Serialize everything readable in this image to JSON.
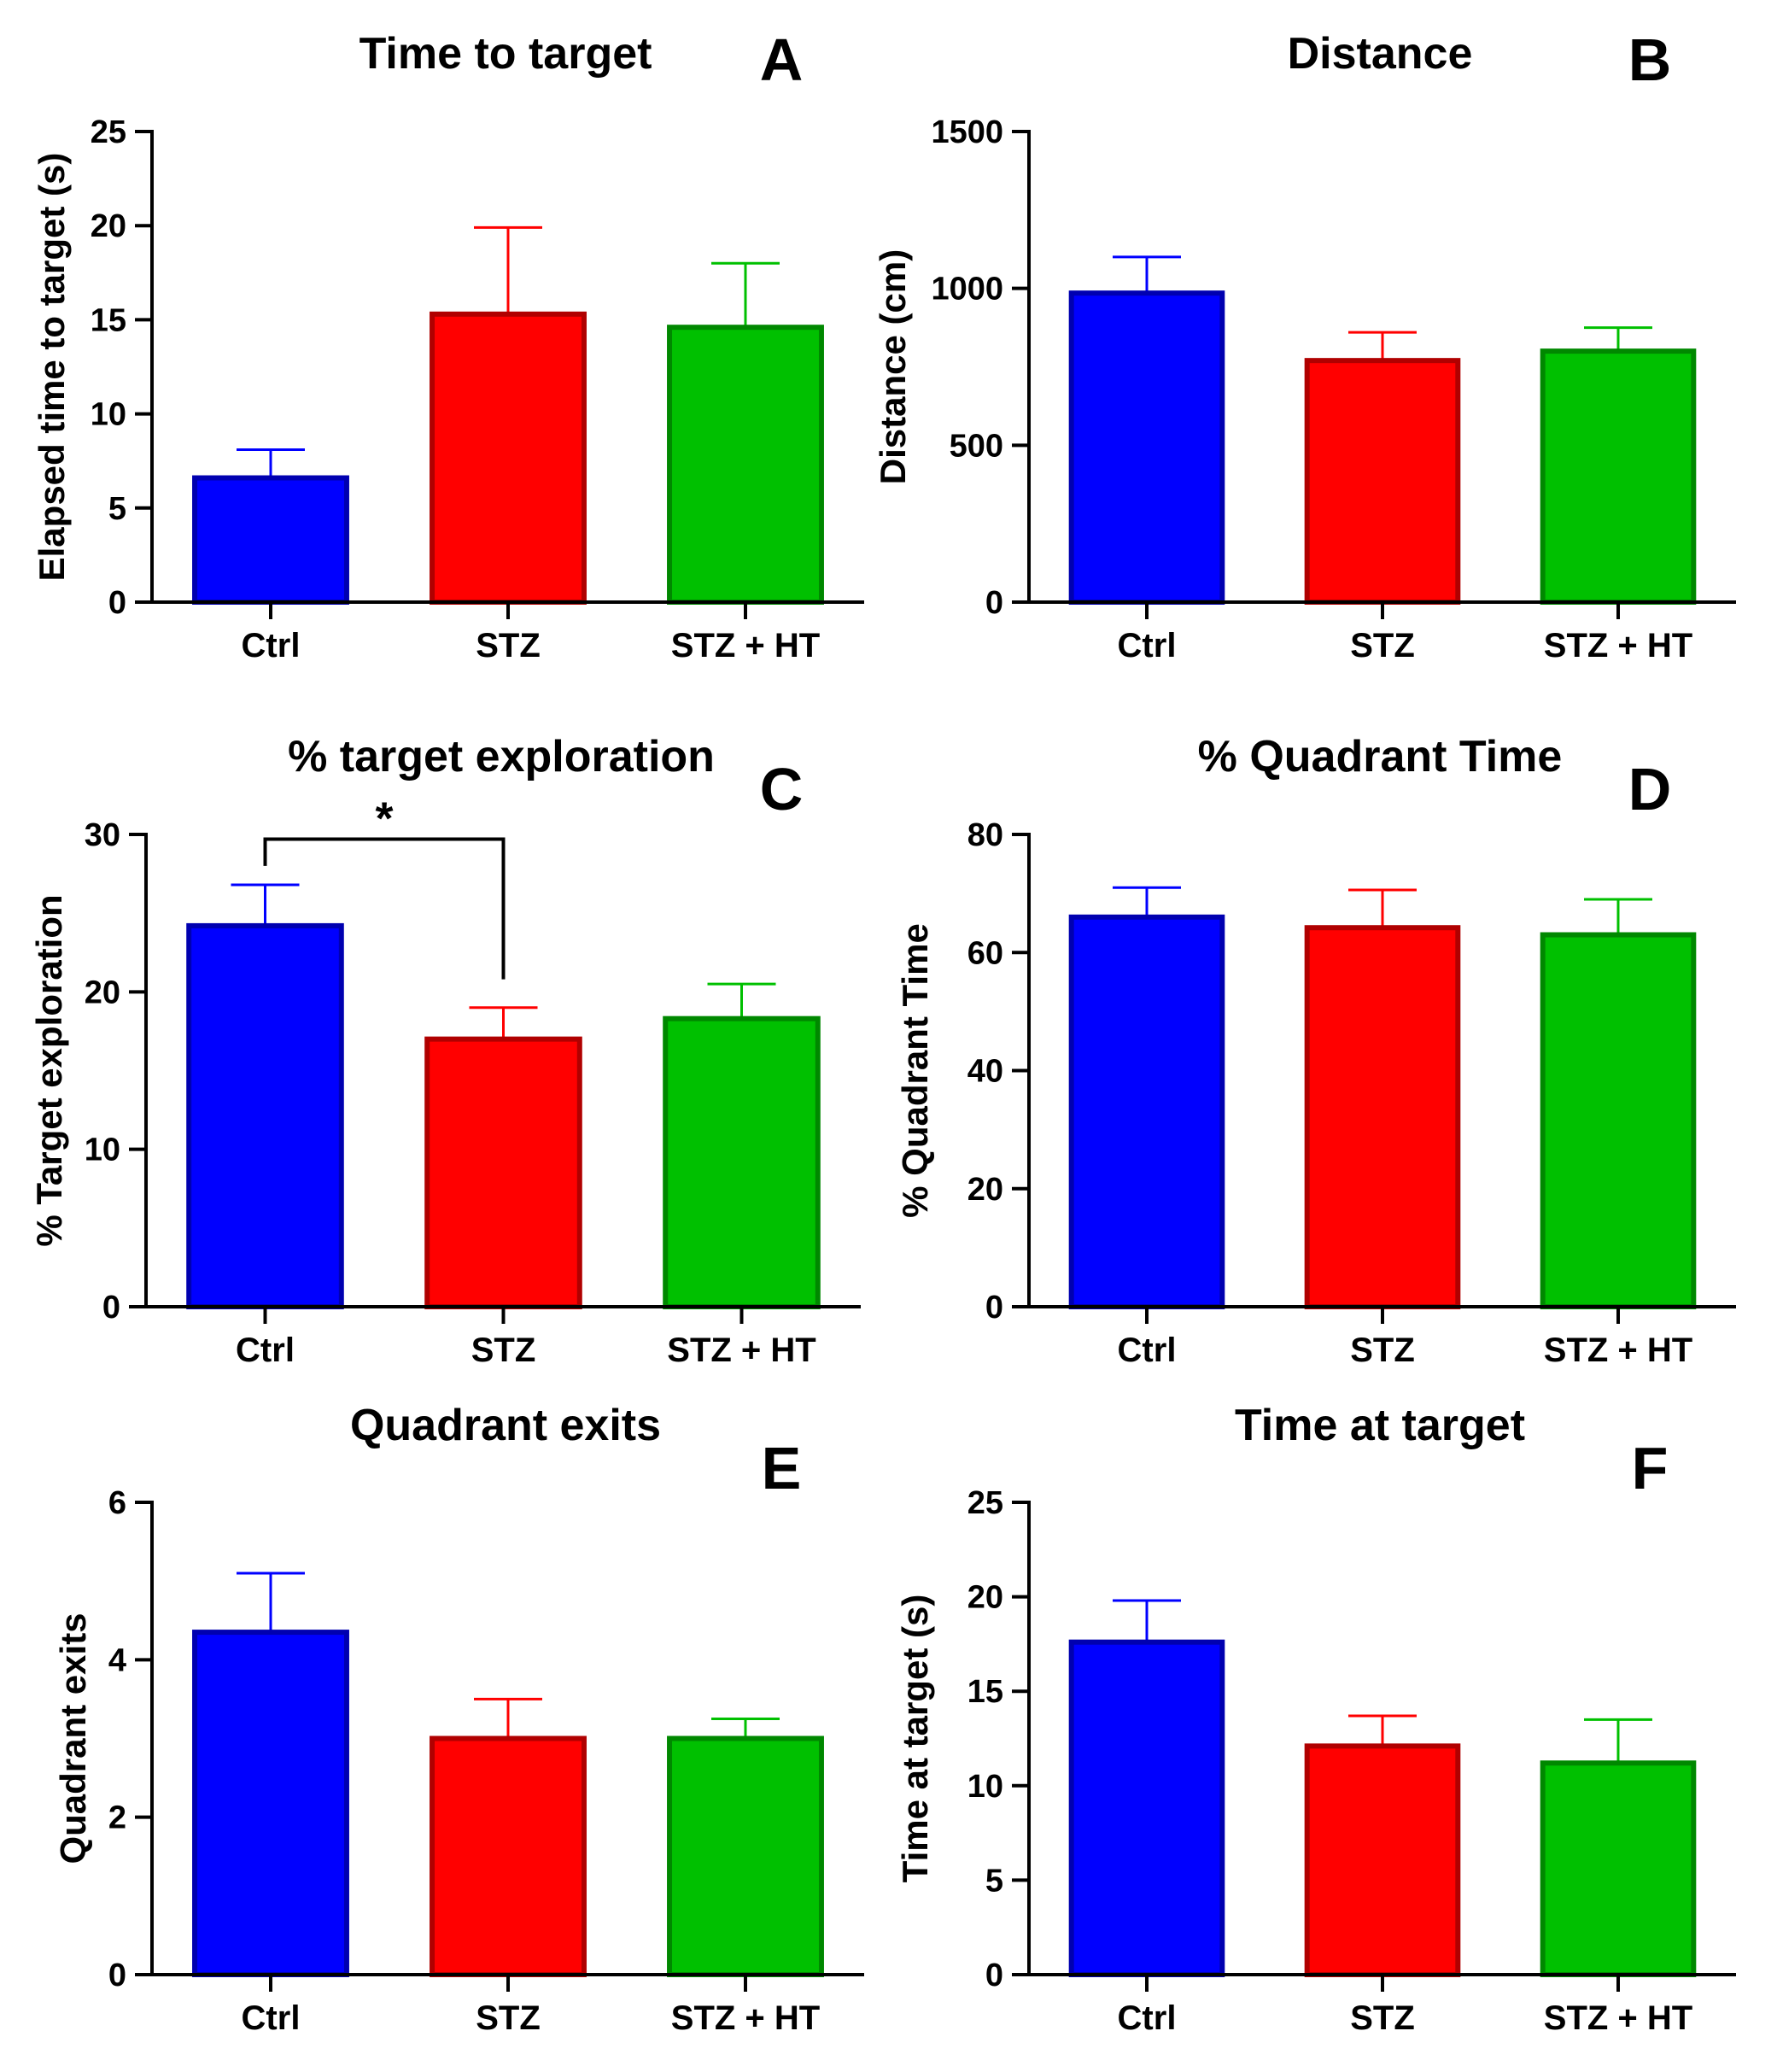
{
  "chart_data": [
    {
      "id": "A",
      "type": "bar",
      "title": "Time to target",
      "panel_label": "A",
      "ylabel": "Elapsed time to target (s)",
      "xlabel": "",
      "categories": [
        "Ctrl",
        "STZ",
        "STZ + HT"
      ],
      "values": [
        6.6,
        15.3,
        14.6
      ],
      "errors": [
        1.5,
        4.6,
        3.4
      ],
      "ylim": [
        0,
        25
      ],
      "yticks": [
        0,
        5,
        10,
        15,
        20,
        25
      ],
      "significance": null
    },
    {
      "id": "B",
      "type": "bar",
      "title": "Distance",
      "panel_label": "B",
      "ylabel": "Distance (cm)",
      "xlabel": "",
      "categories": [
        "Ctrl",
        "STZ",
        "STZ + HT"
      ],
      "values": [
        985,
        770,
        800
      ],
      "errors": [
        115,
        90,
        75
      ],
      "ylim": [
        0,
        1500
      ],
      "yticks": [
        0,
        500,
        1000,
        1500
      ],
      "significance": null
    },
    {
      "id": "C",
      "type": "bar",
      "title": "% target exploration",
      "panel_label": "C",
      "ylabel": "% Target exploration",
      "xlabel": "",
      "categories": [
        "Ctrl",
        "STZ",
        "STZ + HT"
      ],
      "values": [
        24.2,
        17.0,
        18.3
      ],
      "errors": [
        2.6,
        2.0,
        2.2
      ],
      "ylim": [
        0,
        30
      ],
      "yticks": [
        0,
        10,
        20,
        30
      ],
      "significance": {
        "from": 0,
        "to": 1,
        "label": "*",
        "level": 29.7,
        "drop_left": 28.0,
        "drop_right": 20.8
      }
    },
    {
      "id": "D",
      "type": "bar",
      "title": "% Quadrant Time",
      "panel_label": "D",
      "ylabel": "% Quadrant Time",
      "xlabel": "",
      "categories": [
        "Ctrl",
        "STZ",
        "STZ + HT"
      ],
      "values": [
        66.0,
        64.2,
        63.0
      ],
      "errors": [
        5.0,
        6.4,
        6.0
      ],
      "ylim": [
        0,
        80
      ],
      "yticks": [
        0,
        20,
        40,
        60,
        80
      ],
      "significance": null
    },
    {
      "id": "E",
      "type": "bar",
      "title": "Quadrant exits",
      "panel_label": "E",
      "ylabel": "Quadrant exits",
      "xlabel": "",
      "categories": [
        "Ctrl",
        "STZ",
        "STZ + HT"
      ],
      "values": [
        4.35,
        3.0,
        3.0
      ],
      "errors": [
        0.75,
        0.5,
        0.25
      ],
      "ylim": [
        0,
        6
      ],
      "yticks": [
        0,
        2,
        4,
        6
      ],
      "significance": null
    },
    {
      "id": "F",
      "type": "bar",
      "title": "Time at target",
      "panel_label": "F",
      "ylabel": "Time at target (s)",
      "xlabel": "",
      "categories": [
        "Ctrl",
        "STZ",
        "STZ + HT"
      ],
      "values": [
        17.6,
        12.1,
        11.2
      ],
      "errors": [
        2.2,
        1.6,
        2.3
      ],
      "ylim": [
        0,
        25
      ],
      "yticks": [
        0,
        5,
        10,
        15,
        20,
        25
      ],
      "significance": null
    }
  ],
  "colors": {
    "bar_fills": [
      "#0000ff",
      "#ff0000",
      "#00c000"
    ],
    "bar_strokes": [
      "#0000b0",
      "#b00000",
      "#008800"
    ],
    "axis": "#000000"
  }
}
